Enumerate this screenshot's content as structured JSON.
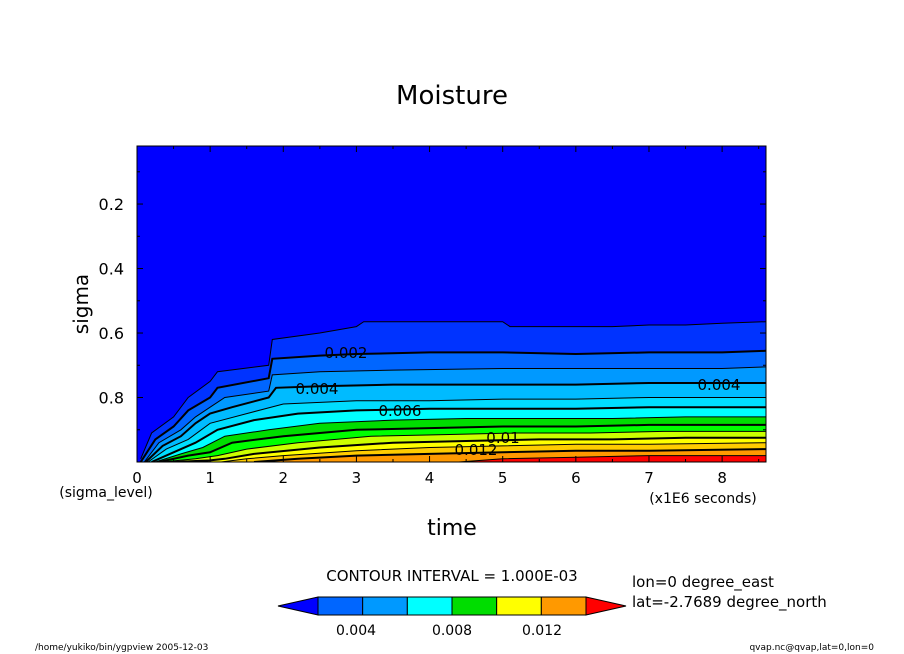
{
  "chart_data": {
    "type": "contour",
    "title": "Moisture",
    "xlabel": "time",
    "ylabel": "sigma",
    "x_origin_label": "(sigma_level)",
    "x_units_label": "(x1E6 seconds)",
    "xlim": [
      0,
      8.6
    ],
    "ylim": [
      1.0,
      0.02
    ],
    "xticks": [
      0,
      1,
      2,
      3,
      4,
      5,
      6,
      7,
      8
    ],
    "yticks": [
      0.2,
      0.4,
      0.6,
      0.8
    ],
    "contour_interval_label": "CONTOUR INTERVAL = 1.000E-03",
    "contour_labels": [
      "0.002",
      "0.004",
      "0.006",
      "0.01",
      "0.012",
      "0.004"
    ],
    "levels": [
      0.001,
      0.002,
      0.003,
      0.004,
      0.005,
      0.006,
      0.007,
      0.008,
      0.009,
      0.01,
      0.011,
      0.012,
      0.013
    ],
    "contours": [
      {
        "level": 0.001,
        "points": [
          [
            0.05,
            0.99
          ],
          [
            0.2,
            0.91
          ],
          [
            0.5,
            0.86
          ],
          [
            0.7,
            0.8
          ],
          [
            1.0,
            0.75
          ],
          [
            1.1,
            0.72
          ],
          [
            1.8,
            0.7
          ],
          [
            1.85,
            0.62
          ],
          [
            2.5,
            0.6
          ],
          [
            3.0,
            0.58
          ],
          [
            3.1,
            0.565
          ],
          [
            4.0,
            0.565
          ],
          [
            5.0,
            0.565
          ],
          [
            5.1,
            0.58
          ],
          [
            6.0,
            0.58
          ],
          [
            6.5,
            0.58
          ],
          [
            7.0,
            0.575
          ],
          [
            7.5,
            0.575
          ],
          [
            8.0,
            0.57
          ],
          [
            8.6,
            0.565
          ]
        ]
      },
      {
        "level": 0.002,
        "points": [
          [
            0.05,
            1.0
          ],
          [
            0.25,
            0.93
          ],
          [
            0.5,
            0.89
          ],
          [
            0.7,
            0.84
          ],
          [
            1.0,
            0.8
          ],
          [
            1.1,
            0.77
          ],
          [
            1.8,
            0.74
          ],
          [
            1.85,
            0.68
          ],
          [
            2.5,
            0.67
          ],
          [
            3.0,
            0.665
          ],
          [
            4.0,
            0.66
          ],
          [
            5.0,
            0.66
          ],
          [
            6.0,
            0.665
          ],
          [
            7.0,
            0.66
          ],
          [
            8.0,
            0.66
          ],
          [
            8.6,
            0.655
          ]
        ]
      },
      {
        "level": 0.003,
        "points": [
          [
            0.1,
            1.0
          ],
          [
            0.3,
            0.94
          ],
          [
            0.6,
            0.9
          ],
          [
            0.8,
            0.86
          ],
          [
            1.0,
            0.83
          ],
          [
            1.2,
            0.8
          ],
          [
            1.8,
            0.78
          ],
          [
            1.85,
            0.73
          ],
          [
            2.5,
            0.72
          ],
          [
            3.5,
            0.715
          ],
          [
            5.0,
            0.71
          ],
          [
            6.0,
            0.71
          ],
          [
            7.0,
            0.71
          ],
          [
            8.0,
            0.71
          ],
          [
            8.6,
            0.705
          ]
        ]
      },
      {
        "level": 0.004,
        "points": [
          [
            0.12,
            1.0
          ],
          [
            0.35,
            0.95
          ],
          [
            0.6,
            0.92
          ],
          [
            0.8,
            0.88
          ],
          [
            1.0,
            0.85
          ],
          [
            1.3,
            0.83
          ],
          [
            1.8,
            0.8
          ],
          [
            1.9,
            0.77
          ],
          [
            2.5,
            0.765
          ],
          [
            3.5,
            0.76
          ],
          [
            5.0,
            0.76
          ],
          [
            6.0,
            0.76
          ],
          [
            7.0,
            0.755
          ],
          [
            8.0,
            0.755
          ],
          [
            8.6,
            0.755
          ]
        ]
      },
      {
        "level": 0.005,
        "points": [
          [
            0.15,
            1.0
          ],
          [
            0.4,
            0.96
          ],
          [
            0.7,
            0.93
          ],
          [
            1.0,
            0.88
          ],
          [
            1.5,
            0.85
          ],
          [
            2.0,
            0.82
          ],
          [
            3.0,
            0.81
          ],
          [
            4.0,
            0.81
          ],
          [
            5.0,
            0.805
          ],
          [
            6.0,
            0.805
          ],
          [
            7.0,
            0.8
          ],
          [
            8.0,
            0.8
          ],
          [
            8.6,
            0.8
          ]
        ]
      },
      {
        "level": 0.006,
        "points": [
          [
            0.2,
            1.0
          ],
          [
            0.5,
            0.97
          ],
          [
            0.8,
            0.94
          ],
          [
            1.1,
            0.9
          ],
          [
            1.6,
            0.87
          ],
          [
            2.2,
            0.85
          ],
          [
            3.0,
            0.84
          ],
          [
            4.0,
            0.835
          ],
          [
            5.0,
            0.835
          ],
          [
            6.0,
            0.835
          ],
          [
            7.0,
            0.83
          ],
          [
            8.0,
            0.83
          ],
          [
            8.6,
            0.83
          ]
        ]
      },
      {
        "level": 0.007,
        "points": [
          [
            0.25,
            1.0
          ],
          [
            0.6,
            0.975
          ],
          [
            0.9,
            0.955
          ],
          [
            1.2,
            0.92
          ],
          [
            1.8,
            0.9
          ],
          [
            2.5,
            0.88
          ],
          [
            3.5,
            0.87
          ],
          [
            4.5,
            0.865
          ],
          [
            5.5,
            0.865
          ],
          [
            6.5,
            0.865
          ],
          [
            7.5,
            0.86
          ],
          [
            8.6,
            0.86
          ]
        ]
      },
      {
        "level": 0.008,
        "points": [
          [
            0.3,
            1.0
          ],
          [
            0.7,
            0.98
          ],
          [
            1.0,
            0.97
          ],
          [
            1.3,
            0.94
          ],
          [
            2.0,
            0.92
          ],
          [
            3.0,
            0.9
          ],
          [
            4.0,
            0.895
          ],
          [
            5.0,
            0.89
          ],
          [
            6.0,
            0.89
          ],
          [
            7.0,
            0.885
          ],
          [
            8.6,
            0.885
          ]
        ]
      },
      {
        "level": 0.009,
        "points": [
          [
            0.35,
            1.0
          ],
          [
            0.8,
            0.99
          ],
          [
            1.1,
            0.98
          ],
          [
            1.5,
            0.96
          ],
          [
            2.2,
            0.94
          ],
          [
            3.2,
            0.92
          ],
          [
            4.2,
            0.915
          ],
          [
            5.2,
            0.91
          ],
          [
            6.2,
            0.91
          ],
          [
            7.2,
            0.905
          ],
          [
            8.6,
            0.905
          ]
        ]
      },
      {
        "level": 0.01,
        "points": [
          [
            0.5,
            1.0
          ],
          [
            1.0,
            0.995
          ],
          [
            1.2,
            0.99
          ],
          [
            1.6,
            0.975
          ],
          [
            2.5,
            0.955
          ],
          [
            3.5,
            0.94
          ],
          [
            4.5,
            0.935
          ],
          [
            5.5,
            0.93
          ],
          [
            6.5,
            0.93
          ],
          [
            7.5,
            0.925
          ],
          [
            8.6,
            0.925
          ]
        ]
      },
      {
        "level": 0.011,
        "points": [
          [
            1.15,
            1.0
          ],
          [
            1.5,
            0.99
          ],
          [
            2.0,
            0.98
          ],
          [
            3.0,
            0.965
          ],
          [
            4.0,
            0.955
          ],
          [
            5.0,
            0.95
          ],
          [
            6.0,
            0.945
          ],
          [
            7.0,
            0.945
          ],
          [
            8.6,
            0.94
          ]
        ]
      },
      {
        "level": 0.012,
        "points": [
          [
            1.6,
            1.0
          ],
          [
            2.2,
            0.99
          ],
          [
            3.0,
            0.98
          ],
          [
            4.0,
            0.975
          ],
          [
            5.0,
            0.97
          ],
          [
            6.0,
            0.965
          ],
          [
            7.0,
            0.965
          ],
          [
            8.6,
            0.96
          ]
        ]
      },
      {
        "level": 0.013,
        "points": [
          [
            4.4,
            1.0
          ],
          [
            5.0,
            0.99
          ],
          [
            6.0,
            0.985
          ],
          [
            7.0,
            0.98
          ],
          [
            8.6,
            0.98
          ]
        ]
      }
    ],
    "fill_colors": [
      "#0000ff",
      "#0033ff",
      "#0066ff",
      "#0099ff",
      "#00bbff",
      "#00ddff",
      "#00ffff",
      "#00dd00",
      "#00ff00",
      "#ccff00",
      "#ffff00",
      "#ffcc00",
      "#ff9900",
      "#ff0000"
    ],
    "colorbar": {
      "colors": [
        "#0000ff",
        "#0066ff",
        "#0099ff",
        "#00ffff",
        "#00dd00",
        "#ffff00",
        "#ff9900",
        "#ff0000"
      ],
      "tick_labels": [
        "0.004",
        "0.008",
        "0.012"
      ]
    },
    "info": {
      "lon": "lon=0 degree_east",
      "lat": "lat=-2.7689 degree_north",
      "footer_left": "/home/yukiko/bin/ygpview  2005-12-03",
      "footer_right": "qvap.nc@qvap,lat=0,lon=0"
    }
  }
}
